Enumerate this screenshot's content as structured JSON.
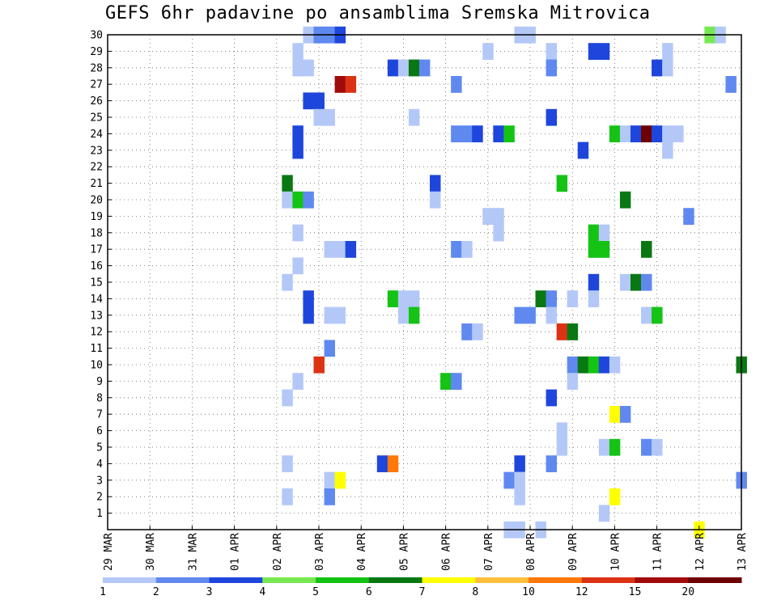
{
  "chart_data": {
    "type": "heatmap",
    "title": "GEFS 6hr padavine po ansamblima Sremska Mitrovica",
    "y_ticks": [
      "1",
      "2",
      "3",
      "4",
      "5",
      "6",
      "7",
      "8",
      "9",
      "10",
      "11",
      "12",
      "13",
      "14",
      "15",
      "16",
      "17",
      "18",
      "19",
      "20",
      "21",
      "22",
      "23",
      "24",
      "25",
      "26",
      "27",
      "28",
      "29",
      "30"
    ],
    "x_ticks": [
      "29 MAR",
      "30 MAR",
      "31 MAR",
      "01 APR",
      "02 APR",
      "03 APR",
      "04 APR",
      "05 APR",
      "06 APR",
      "07 APR",
      "08 APR",
      "09 APR",
      "10 APR",
      "11 APR",
      "12 APR",
      "13 APR"
    ],
    "x_range": [
      0,
      60
    ],
    "y_range": [
      0,
      30
    ],
    "grid": true,
    "colorbar": {
      "labels": [
        "1",
        "2",
        "3",
        "4",
        "5",
        "6",
        "7",
        "8",
        "10",
        "12",
        "15",
        "20"
      ],
      "colors": [
        "#b4c8f8",
        "#6089f0",
        "#1e46dc",
        "#78e852",
        "#14c314",
        "#0a7812",
        "#ffff00",
        "#ffbe3c",
        "#ff780a",
        "#dc3214",
        "#a00a0a",
        "#6e0000"
      ]
    },
    "cells": [
      [
        19,
        30,
        1
      ],
      [
        20,
        30,
        2
      ],
      [
        21,
        30,
        2
      ],
      [
        22,
        30,
        3
      ],
      [
        39,
        30,
        1
      ],
      [
        40,
        30,
        1
      ],
      [
        57,
        30,
        4
      ],
      [
        58,
        30,
        1
      ],
      [
        18,
        29,
        1
      ],
      [
        36,
        29,
        1
      ],
      [
        42,
        29,
        1
      ],
      [
        46,
        29,
        3
      ],
      [
        47,
        29,
        3
      ],
      [
        53,
        29,
        1
      ],
      [
        18,
        28,
        1
      ],
      [
        19,
        28,
        1
      ],
      [
        27,
        28,
        3
      ],
      [
        28,
        28,
        1
      ],
      [
        29,
        28,
        6
      ],
      [
        30,
        28,
        2
      ],
      [
        42,
        28,
        2
      ],
      [
        52,
        28,
        3
      ],
      [
        53,
        28,
        1
      ],
      [
        22,
        27,
        11
      ],
      [
        23,
        27,
        10
      ],
      [
        33,
        27,
        2
      ],
      [
        59,
        27,
        2
      ],
      [
        19,
        26,
        3
      ],
      [
        20,
        26,
        3
      ],
      [
        20,
        25,
        1
      ],
      [
        21,
        25,
        1
      ],
      [
        29,
        25,
        1
      ],
      [
        42,
        25,
        3
      ],
      [
        18,
        24,
        3
      ],
      [
        33,
        24,
        2
      ],
      [
        34,
        24,
        2
      ],
      [
        35,
        24,
        3
      ],
      [
        37,
        24,
        3
      ],
      [
        38,
        24,
        5
      ],
      [
        48,
        24,
        5
      ],
      [
        49,
        24,
        1
      ],
      [
        50,
        24,
        3
      ],
      [
        51,
        24,
        12
      ],
      [
        52,
        24,
        3
      ],
      [
        53,
        24,
        1
      ],
      [
        54,
        24,
        1
      ],
      [
        18,
        23,
        3
      ],
      [
        45,
        23,
        3
      ],
      [
        53,
        23,
        1
      ],
      [
        17,
        21,
        6
      ],
      [
        31,
        21,
        3
      ],
      [
        43,
        21,
        5
      ],
      [
        17,
        20,
        1
      ],
      [
        18,
        20,
        5
      ],
      [
        19,
        20,
        2
      ],
      [
        31,
        20,
        1
      ],
      [
        49,
        20,
        6
      ],
      [
        36,
        19,
        1
      ],
      [
        37,
        19,
        1
      ],
      [
        55,
        19,
        2
      ],
      [
        18,
        18,
        1
      ],
      [
        37,
        18,
        1
      ],
      [
        46,
        18,
        5
      ],
      [
        47,
        18,
        1
      ],
      [
        21,
        17,
        1
      ],
      [
        22,
        17,
        1
      ],
      [
        23,
        17,
        3
      ],
      [
        33,
        17,
        2
      ],
      [
        34,
        17,
        1
      ],
      [
        46,
        17,
        5
      ],
      [
        47,
        17,
        5
      ],
      [
        51,
        17,
        6
      ],
      [
        18,
        16,
        1
      ],
      [
        17,
        15,
        1
      ],
      [
        46,
        15,
        3
      ],
      [
        49,
        15,
        1
      ],
      [
        50,
        15,
        6
      ],
      [
        51,
        15,
        2
      ],
      [
        19,
        14,
        3
      ],
      [
        27,
        14,
        5
      ],
      [
        28,
        14,
        1
      ],
      [
        29,
        14,
        1
      ],
      [
        41,
        14,
        6
      ],
      [
        42,
        14,
        2
      ],
      [
        44,
        14,
        1
      ],
      [
        46,
        14,
        1
      ],
      [
        19,
        13,
        3
      ],
      [
        21,
        13,
        1
      ],
      [
        22,
        13,
        1
      ],
      [
        28,
        13,
        1
      ],
      [
        29,
        13,
        5
      ],
      [
        39,
        13,
        2
      ],
      [
        40,
        13,
        2
      ],
      [
        42,
        13,
        1
      ],
      [
        51,
        13,
        1
      ],
      [
        52,
        13,
        5
      ],
      [
        34,
        12,
        2
      ],
      [
        35,
        12,
        1
      ],
      [
        43,
        12,
        10
      ],
      [
        44,
        12,
        6
      ],
      [
        21,
        11,
        2
      ],
      [
        20,
        10,
        10
      ],
      [
        44,
        10,
        2
      ],
      [
        45,
        10,
        6
      ],
      [
        46,
        10,
        5
      ],
      [
        47,
        10,
        3
      ],
      [
        48,
        10,
        1
      ],
      [
        60,
        10,
        6
      ],
      [
        18,
        9,
        1
      ],
      [
        32,
        9,
        5
      ],
      [
        33,
        9,
        2
      ],
      [
        44,
        9,
        1
      ],
      [
        17,
        8,
        1
      ],
      [
        42,
        8,
        3
      ],
      [
        48,
        7,
        7
      ],
      [
        49,
        7,
        2
      ],
      [
        43,
        6,
        1
      ],
      [
        43,
        5,
        1
      ],
      [
        47,
        5,
        1
      ],
      [
        48,
        5,
        5
      ],
      [
        51,
        5,
        2
      ],
      [
        52,
        5,
        1
      ],
      [
        17,
        4,
        1
      ],
      [
        26,
        4,
        3
      ],
      [
        27,
        4,
        9
      ],
      [
        39,
        4,
        3
      ],
      [
        42,
        4,
        2
      ],
      [
        21,
        3,
        1
      ],
      [
        22,
        3,
        7
      ],
      [
        38,
        3,
        2
      ],
      [
        39,
        3,
        1
      ],
      [
        60,
        3,
        2
      ],
      [
        17,
        2,
        1
      ],
      [
        21,
        2,
        2
      ],
      [
        39,
        2,
        1
      ],
      [
        48,
        2,
        7
      ],
      [
        47,
        1,
        1
      ],
      [
        38,
        0,
        1
      ],
      [
        39,
        0,
        1
      ],
      [
        41,
        0,
        1
      ],
      [
        56,
        0,
        7
      ]
    ]
  }
}
